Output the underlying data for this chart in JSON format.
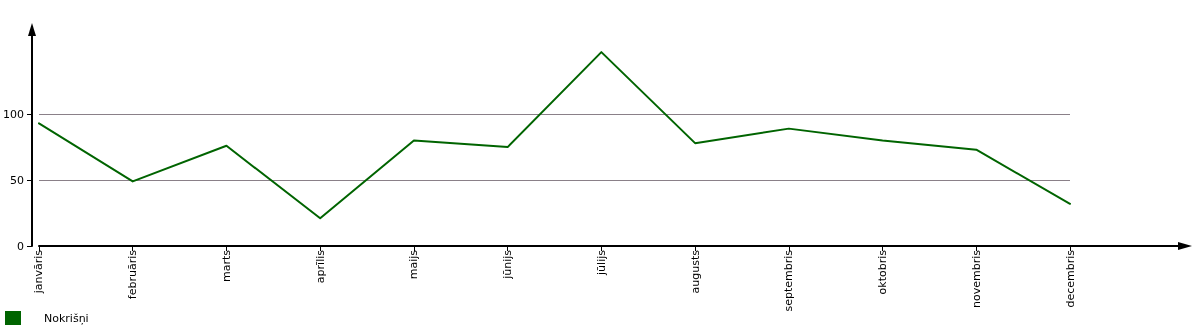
{
  "chart_data": {
    "type": "line",
    "categories": [
      "janvāris",
      "februāris",
      "marts",
      "aprīlis",
      "maijs",
      "jūnijs",
      "jūlijs",
      "augusts",
      "septembris",
      "oktobris",
      "novembris",
      "decembris"
    ],
    "series": [
      {
        "name": "Nokrišņi",
        "color": "#006400",
        "values": [
          93,
          49,
          76,
          21,
          80,
          75,
          147,
          78,
          89,
          80,
          73,
          32
        ]
      }
    ],
    "ylim": [
      0,
      160
    ],
    "yticks": [
      0,
      50,
      100
    ],
    "grid": "y",
    "legend": "bottom left",
    "marker": "none",
    "line_style": "solid"
  }
}
